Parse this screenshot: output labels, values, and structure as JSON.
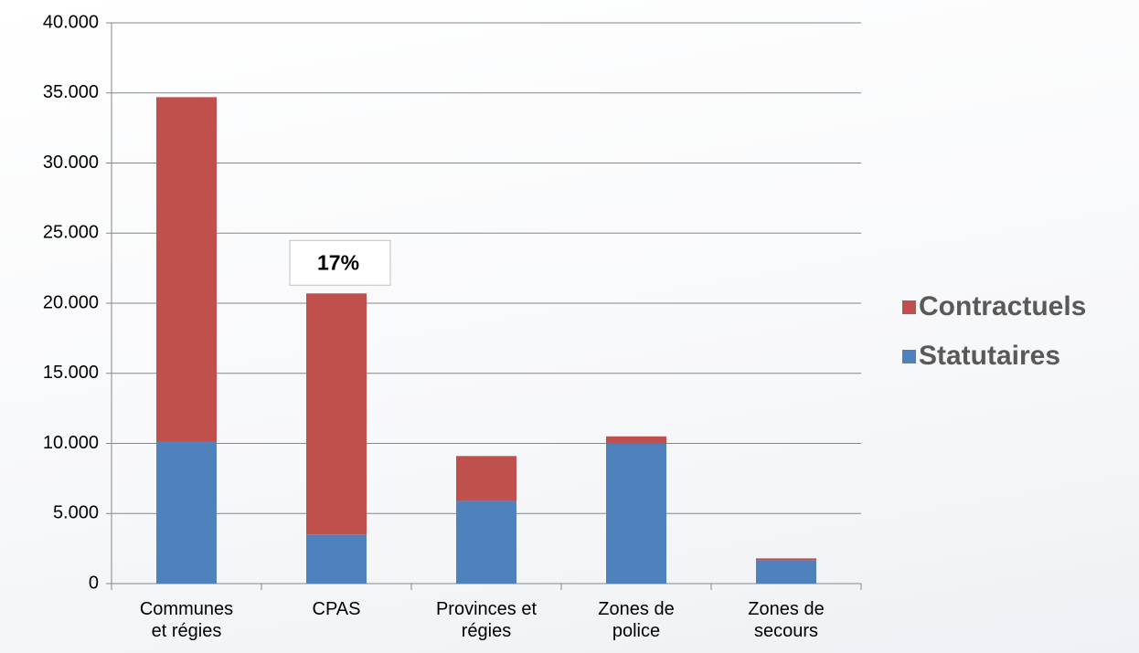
{
  "chart_data": {
    "type": "stacked_bar",
    "categories": [
      "Communes et régies",
      "CPAS",
      "Provinces et régies",
      "Zones de police",
      "Zones de secours"
    ],
    "series": [
      {
        "name": "Statutaires",
        "color": "#4f81bd",
        "values": [
          10100,
          3500,
          5900,
          10000,
          1650
        ]
      },
      {
        "name": "Contractuels",
        "color": "#c0504d",
        "values": [
          24600,
          17200,
          3200,
          500,
          150
        ]
      }
    ],
    "ylim": [
      0,
      40000
    ],
    "yticks": [
      {
        "value": 0,
        "label": "0"
      },
      {
        "value": 5000,
        "label": "5.000"
      },
      {
        "value": 10000,
        "label": "10.000"
      },
      {
        "value": 15000,
        "label": "15.000"
      },
      {
        "value": 20000,
        "label": "20.000"
      },
      {
        "value": 25000,
        "label": "25.000"
      },
      {
        "value": 30000,
        "label": "30.000"
      },
      {
        "value": 35000,
        "label": "35.000"
      },
      {
        "value": 40000,
        "label": "40.000"
      }
    ],
    "grid": true,
    "legend": "right",
    "annotations": [
      {
        "text": "17%",
        "category": 1
      }
    ]
  }
}
